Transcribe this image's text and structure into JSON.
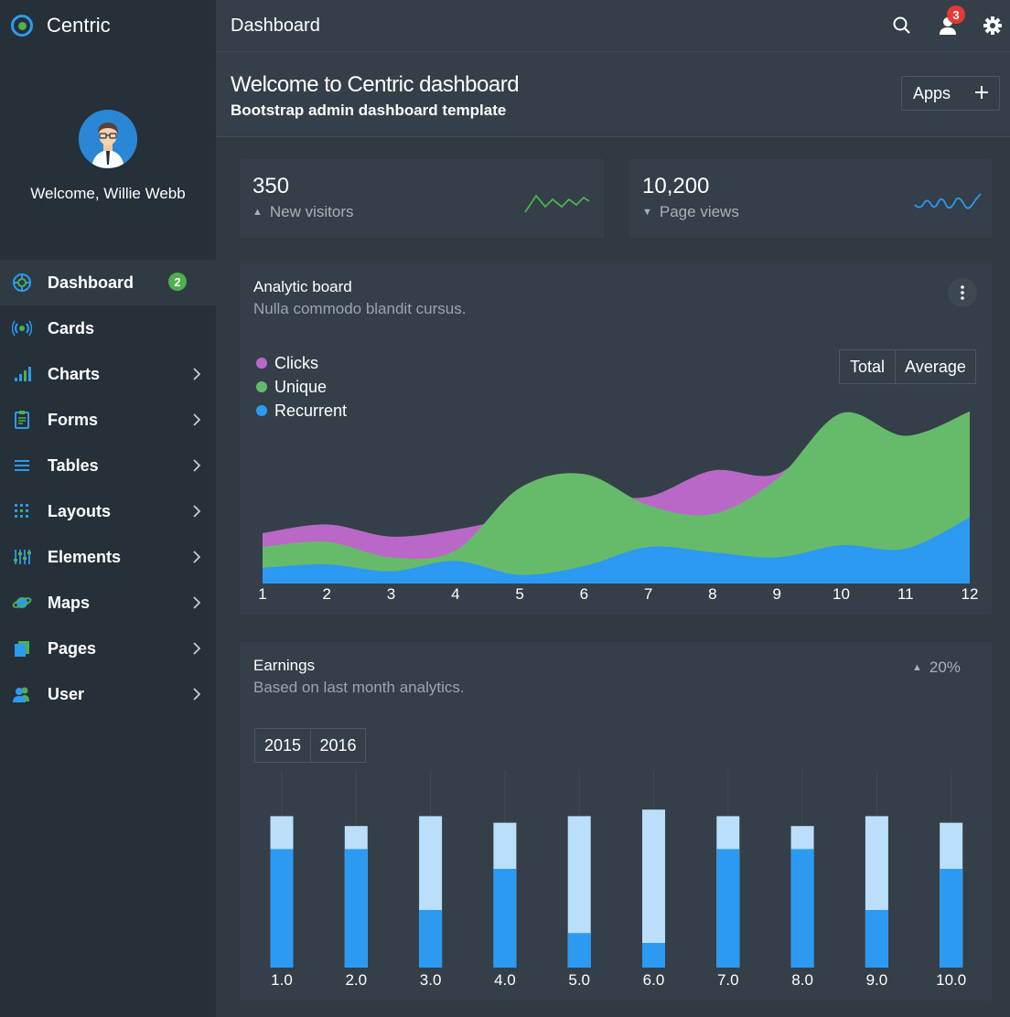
{
  "app": {
    "name": "Centric"
  },
  "topbar": {
    "title": "Dashboard",
    "notification_count": "3"
  },
  "profile": {
    "welcome": "Welcome, Willie Webb"
  },
  "sidebar": {
    "items": [
      {
        "label": "Dashboard",
        "icon": "dashboard-icon",
        "badge": "2",
        "active": true
      },
      {
        "label": "Cards",
        "icon": "cards-icon"
      },
      {
        "label": "Charts",
        "icon": "charts-icon"
      },
      {
        "label": "Forms",
        "icon": "forms-icon"
      },
      {
        "label": "Tables",
        "icon": "tables-icon"
      },
      {
        "label": "Layouts",
        "icon": "layouts-icon"
      },
      {
        "label": "Elements",
        "icon": "elements-icon"
      },
      {
        "label": "Maps",
        "icon": "maps-icon"
      },
      {
        "label": "Pages",
        "icon": "pages-icon"
      },
      {
        "label": "User",
        "icon": "user-icon"
      }
    ]
  },
  "header": {
    "title": "Welcome to Centric dashboard",
    "subtitle": "Bootstrap admin dashboard template",
    "apps_label": "Apps"
  },
  "stats": [
    {
      "value": "350",
      "label": "New visitors",
      "trend": "up",
      "color": "#4caf50"
    },
    {
      "value": "10,200",
      "label": "Page views",
      "trend": "down",
      "color": "#2b9af0"
    }
  ],
  "analytic": {
    "title": "Analytic board",
    "subtitle": "Nulla commodo blandit cursus.",
    "legend": [
      {
        "name": "Clicks",
        "color": "#ba68c8"
      },
      {
        "name": "Unique",
        "color": "#66bb6a"
      },
      {
        "name": "Recurrent",
        "color": "#2b9af0"
      }
    ],
    "buttons": [
      "Total",
      "Average"
    ]
  },
  "earnings": {
    "title": "Earnings",
    "subtitle": "Based on last month analytics.",
    "change": "20%",
    "years": [
      "2015",
      "2016"
    ]
  },
  "chart_data": [
    {
      "type": "area",
      "x": [
        1,
        2,
        3,
        4,
        5,
        6,
        7,
        8,
        9,
        10,
        11,
        12
      ],
      "ylim": [
        0,
        100
      ],
      "series": [
        {
          "name": "Clicks",
          "values": [
            29,
            34,
            27,
            31,
            39,
            50,
            50,
            65,
            63,
            90,
            83,
            99
          ]
        },
        {
          "name": "Unique",
          "values": [
            21,
            24,
            15,
            19,
            55,
            63,
            45,
            40,
            60,
            98,
            85,
            99
          ]
        },
        {
          "name": "Recurrent",
          "values": [
            9,
            11,
            7,
            13,
            5,
            10,
            21,
            18,
            15,
            22,
            20,
            38
          ]
        }
      ]
    },
    {
      "type": "bar",
      "categories": [
        "1.0",
        "2.0",
        "3.0",
        "4.0",
        "5.0",
        "6.0",
        "7.0",
        "8.0",
        "9.0",
        "10.0"
      ],
      "ylim": [
        0,
        100
      ],
      "series": [
        {
          "name": "2015",
          "values": [
            72,
            72,
            35,
            60,
            21,
            15,
            72,
            72,
            35,
            60
          ]
        },
        {
          "name": "2016",
          "values": [
            92,
            86,
            92,
            88,
            92,
            96,
            92,
            86,
            92,
            88
          ]
        }
      ]
    }
  ]
}
